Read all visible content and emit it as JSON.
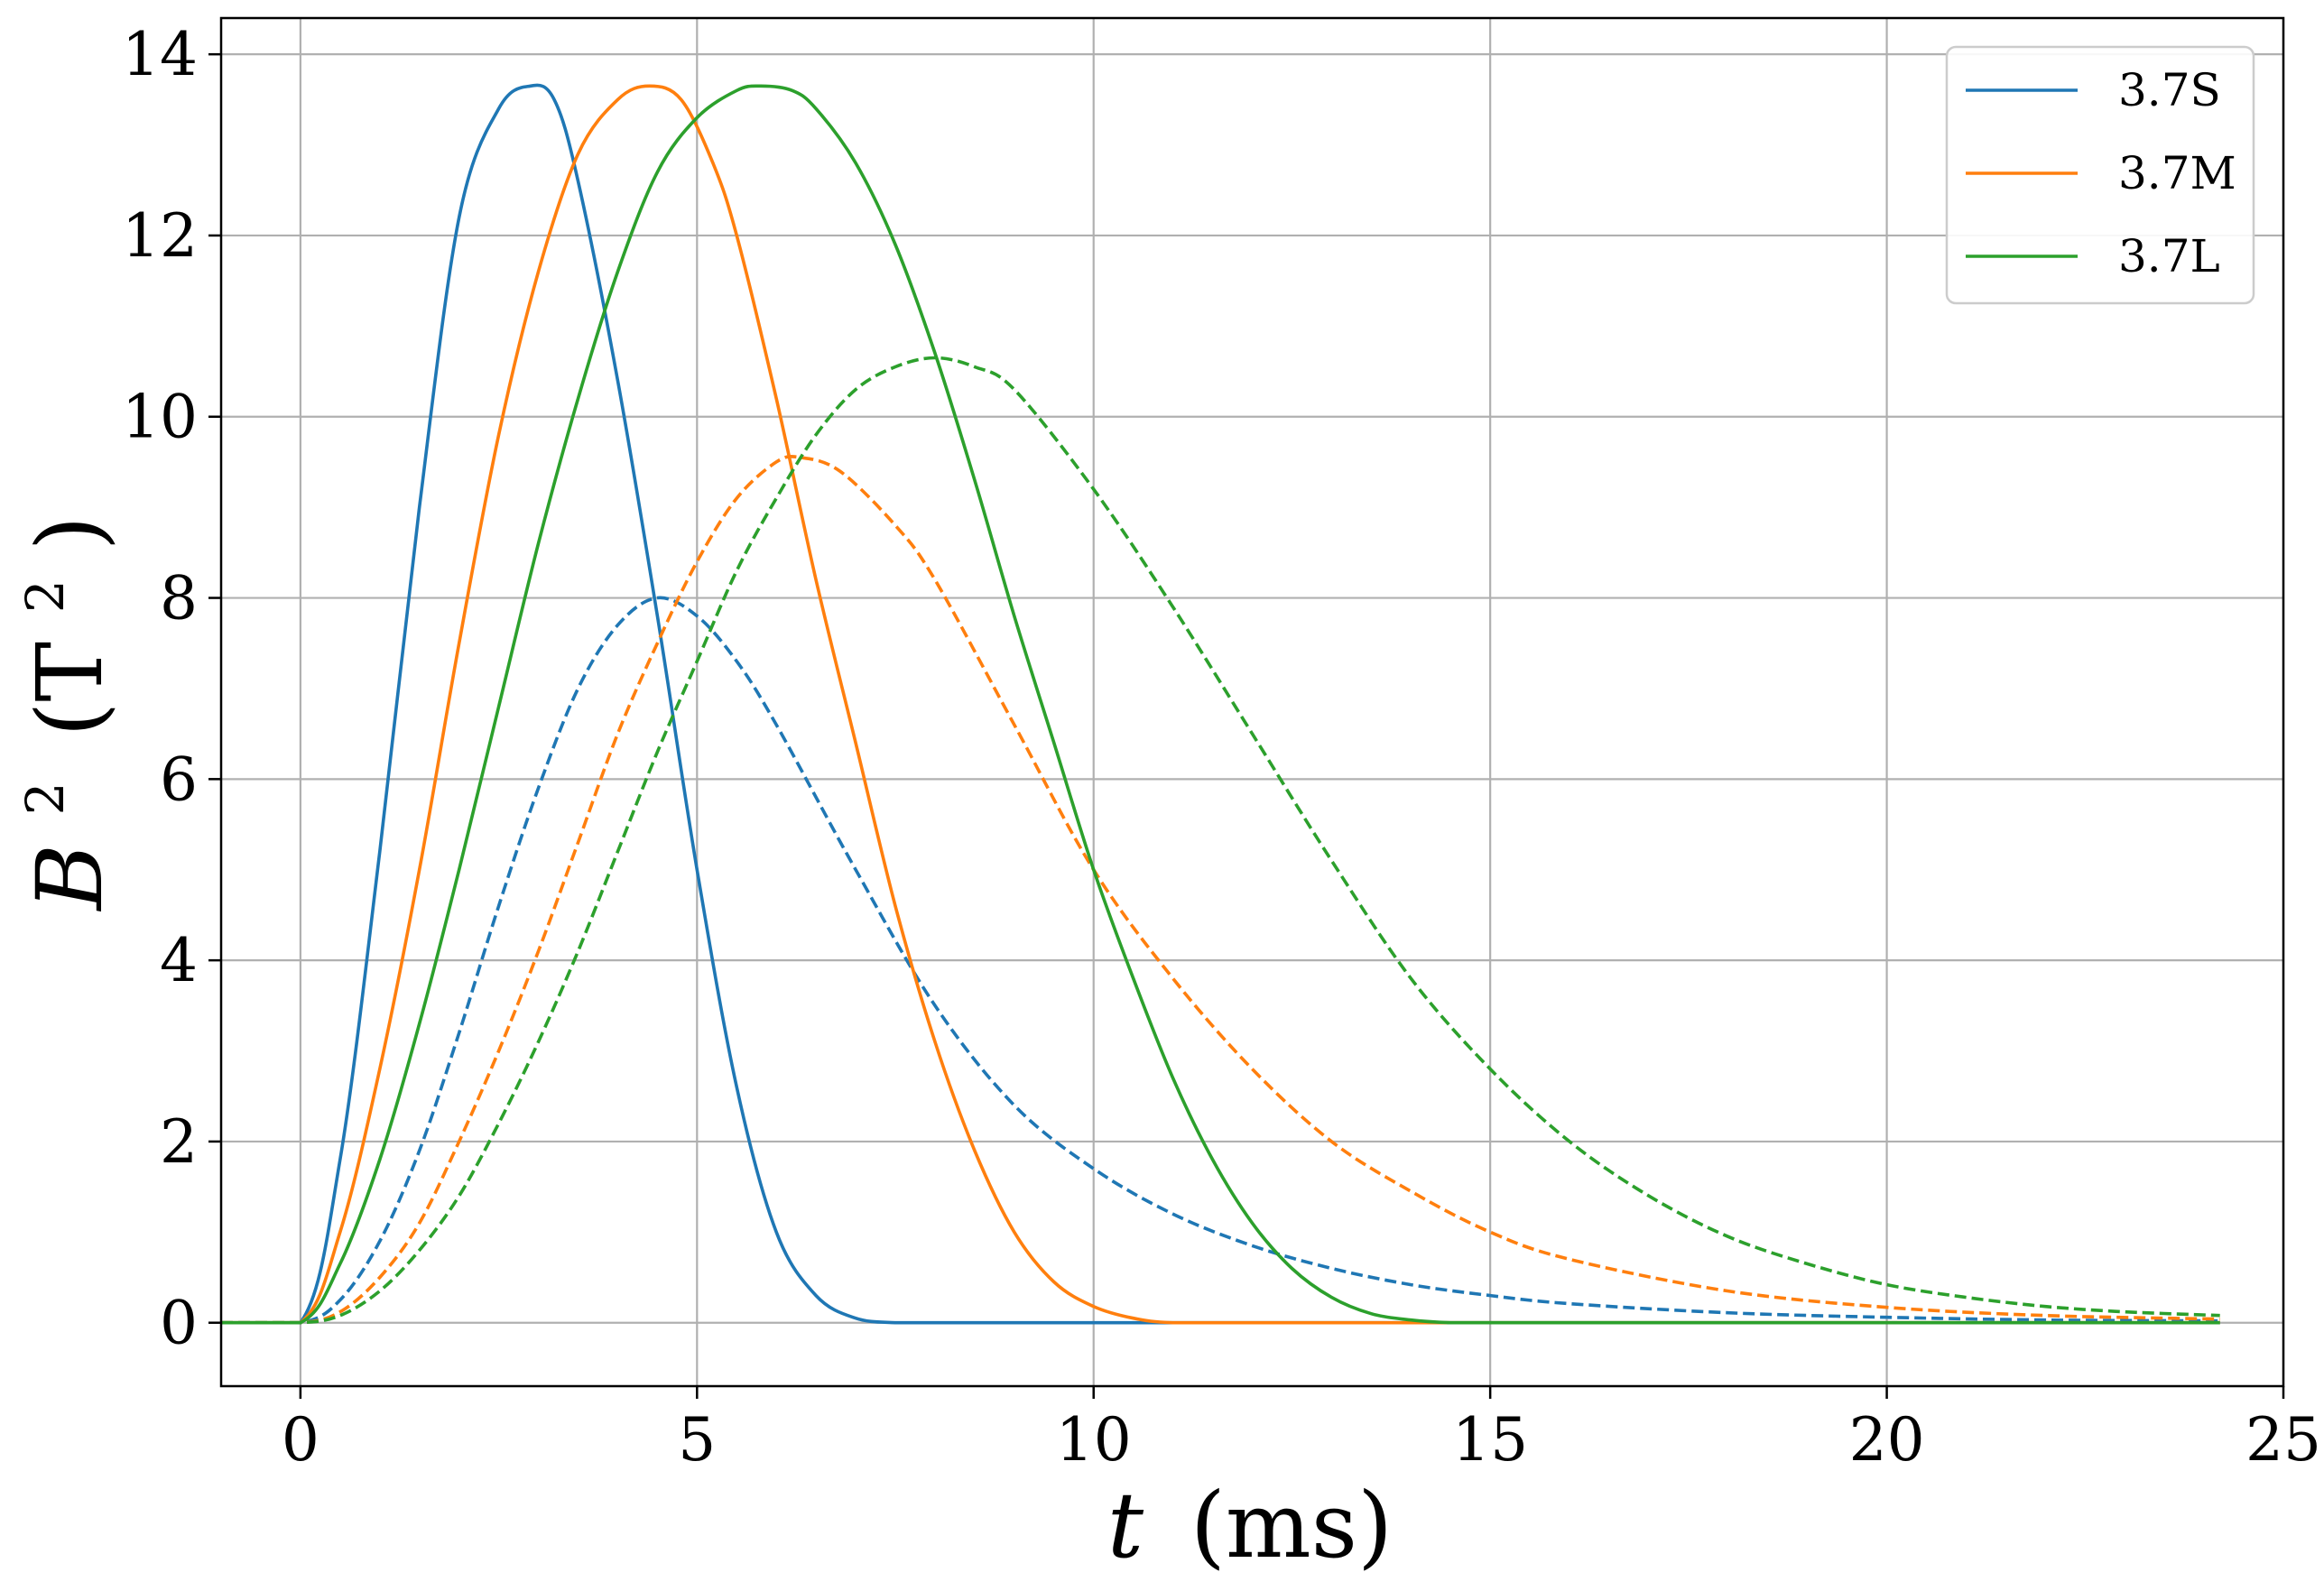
{
  "chart_data": {
    "type": "line",
    "xlabel": "t (ms)",
    "ylabel": "B² (T²)",
    "xlabel_parts": {
      "var": "t",
      "unit": "(ms)"
    },
    "ylabel_parts": {
      "var": "B",
      "sup": "2",
      "unit_open": "(T",
      "unit_sup": "2",
      "unit_close": ")"
    },
    "xlim": [
      -1,
      25
    ],
    "ylim": [
      -0.7,
      14.4
    ],
    "xticks": [
      0,
      5,
      10,
      15,
      20,
      25
    ],
    "yticks": [
      0,
      2,
      4,
      6,
      8,
      10,
      12,
      14
    ],
    "grid": true,
    "legend": {
      "placement": "top-right",
      "entries": [
        "3.7S",
        "3.7M",
        "3.7L"
      ]
    },
    "colors": {
      "3.7S": "#1f77b4",
      "3.7M": "#ff7f0e",
      "3.7L": "#2ca02c"
    },
    "series": [
      {
        "name": "3.7S",
        "style": "solid",
        "color": "#1f77b4",
        "x": [
          -1,
          0,
          0.5,
          1,
          1.5,
          2,
          2.5,
          2.9,
          3.2,
          3.5,
          4,
          4.5,
          5,
          5.5,
          6,
          6.5,
          7,
          7.5,
          8,
          10,
          15,
          20,
          24.2
        ],
        "y": [
          0,
          0,
          1.8,
          5.2,
          9.0,
          12.2,
          13.4,
          13.65,
          13.5,
          12.6,
          10.4,
          7.8,
          5.0,
          2.6,
          1.0,
          0.3,
          0.05,
          0.0,
          0.0,
          0,
          0,
          0,
          0
        ]
      },
      {
        "name": "3.7S",
        "style": "dashed",
        "color": "#1f77b4",
        "x": [
          -1,
          0,
          0.5,
          1,
          1.5,
          2,
          2.5,
          3,
          3.5,
          4,
          4.5,
          5,
          5.5,
          6,
          7,
          8,
          9,
          10,
          11,
          12,
          13,
          14,
          15,
          16,
          18,
          20,
          22,
          24.2
        ],
        "y": [
          0,
          0,
          0.25,
          0.9,
          1.9,
          3.2,
          4.6,
          5.9,
          7.0,
          7.7,
          8.0,
          7.8,
          7.3,
          6.6,
          5.0,
          3.5,
          2.4,
          1.7,
          1.2,
          0.85,
          0.6,
          0.42,
          0.3,
          0.21,
          0.11,
          0.06,
          0.03,
          0.02
        ]
      },
      {
        "name": "3.7M",
        "style": "solid",
        "color": "#ff7f0e",
        "x": [
          -1,
          0,
          0.5,
          1,
          1.5,
          2,
          2.5,
          3,
          3.5,
          4,
          4.4,
          4.8,
          5.2,
          5.5,
          6,
          6.5,
          7,
          7.5,
          8,
          8.5,
          9,
          9.5,
          10,
          10.5,
          11,
          12,
          15,
          20,
          24.2
        ],
        "y": [
          0,
          0,
          1.0,
          2.8,
          5.0,
          7.5,
          9.8,
          11.6,
          12.9,
          13.5,
          13.65,
          13.5,
          12.8,
          12.0,
          10.2,
          8.2,
          6.4,
          4.6,
          3.1,
          1.9,
          1.0,
          0.45,
          0.18,
          0.05,
          0.0,
          0,
          0,
          0,
          0
        ]
      },
      {
        "name": "3.7M",
        "style": "dashed",
        "color": "#ff7f0e",
        "x": [
          -1,
          0,
          0.5,
          1,
          1.5,
          2,
          2.5,
          3,
          3.5,
          4,
          4.5,
          5,
          5.5,
          6,
          6.3,
          6.8,
          7.5,
          8,
          9,
          10,
          11,
          12,
          13,
          14,
          15,
          16,
          18,
          20,
          22,
          24.2
        ],
        "y": [
          0,
          0,
          0.12,
          0.5,
          1.1,
          2.0,
          3.0,
          4.1,
          5.3,
          6.5,
          7.5,
          8.4,
          9.1,
          9.5,
          9.55,
          9.4,
          8.8,
          8.2,
          6.6,
          5.0,
          3.8,
          2.8,
          2.0,
          1.45,
          1.0,
          0.7,
          0.35,
          0.17,
          0.08,
          0.04
        ]
      },
      {
        "name": "3.7L",
        "style": "solid",
        "color": "#2ca02c",
        "x": [
          -1,
          0,
          0.5,
          1,
          1.5,
          2,
          2.5,
          3,
          3.5,
          4,
          4.5,
          5,
          5.5,
          5.8,
          6.2,
          6.5,
          7,
          7.5,
          8,
          8.5,
          9,
          9.5,
          10,
          10.5,
          11,
          11.5,
          12,
          12.5,
          13,
          13.5,
          14,
          14.5,
          15,
          20,
          24.2
        ],
        "y": [
          0,
          0,
          0.65,
          1.8,
          3.3,
          5.0,
          6.8,
          8.6,
          10.2,
          11.6,
          12.7,
          13.3,
          13.6,
          13.65,
          13.6,
          13.4,
          12.8,
          11.9,
          10.7,
          9.3,
          7.8,
          6.4,
          5.0,
          3.8,
          2.7,
          1.8,
          1.1,
          0.6,
          0.28,
          0.1,
          0.03,
          0.0,
          0,
          0,
          0
        ]
      },
      {
        "name": "3.7L",
        "style": "dashed",
        "color": "#2ca02c",
        "x": [
          -1,
          0,
          0.5,
          1,
          1.5,
          2,
          2.5,
          3,
          3.5,
          4,
          4.5,
          5,
          5.5,
          6,
          6.5,
          7,
          7.5,
          8,
          8.5,
          9,
          10,
          11,
          12,
          13,
          14,
          15,
          16,
          17,
          18,
          19,
          20,
          21,
          22,
          23,
          24.2
        ],
        "y": [
          0,
          0,
          0.08,
          0.35,
          0.8,
          1.4,
          2.2,
          3.1,
          4.1,
          5.2,
          6.3,
          7.3,
          8.3,
          9.1,
          9.8,
          10.3,
          10.55,
          10.65,
          10.55,
          10.3,
          9.2,
          7.9,
          6.5,
          5.1,
          3.8,
          2.8,
          2.0,
          1.4,
          0.95,
          0.65,
          0.42,
          0.28,
          0.18,
          0.12,
          0.08
        ]
      }
    ]
  }
}
